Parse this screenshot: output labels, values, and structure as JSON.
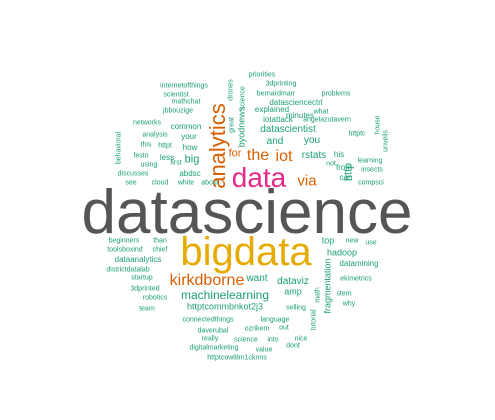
{
  "colors": {
    "teal": "#1b9e77",
    "orange": "#d95f02",
    "gold": "#e6ab02",
    "magenta": "#e7298a",
    "gray": "#555555"
  },
  "words": {
    "datascience": "datascience",
    "bigdata": "bigdata",
    "data": "data",
    "analytics": "analytics",
    "kirkdborne": "kirkdborne",
    "the": "the",
    "iot": "iot",
    "via": "via",
    "machinelearning": "machinelearning",
    "for": "for",
    "big": "big",
    "http": "http",
    "datascientist": "datascientist",
    "and": "and",
    "you": "you",
    "rstats": "rstats",
    "dataviz": "dataviz",
    "want": "want",
    "amp": "amp",
    "top": "top",
    "hadoop": "hadoop",
    "byodnews": "byodnews",
    "fragmentation": "fragmentation",
    "httptcommbnkot2j3": "httptcommbnkot2j3",
    "common": "common",
    "how": "how",
    "your": "your",
    "iotattack": "iotattack",
    "explained": "explained",
    "abdsc": "abdsc",
    "less": "less",
    "minutes": "minutes",
    "his": "his",
    "from": "from",
    "can": "can",
    "dataanalytics": "dataanalytics",
    "datamining": "datamining",
    "datasciencectrl": "datasciencectrl",
    "internetofthings": "internetofthings",
    "scientist": "scientist",
    "mathchat": "mathchat",
    "jbbouzige": "jbbouzige",
    "networks": "networks",
    "analysis": "analysis",
    "httpt": "httpt",
    "using": "using",
    "festo": "festo",
    "this": "this",
    "first": "first",
    "discusses": "discusses",
    "see": "see",
    "cloud": "cloud",
    "white": "white",
    "about": "about",
    "behavioral": "behavioral",
    "drones": "drones",
    "great": "great",
    "science": "science",
    "priorities": "priorities",
    "3dprinting": "3dprinting",
    "bernardmarr": "bernardmarr",
    "problems": "problems",
    "what": "what",
    "angelazutavern": "angelazutavern",
    "httptc": "httptc",
    "house": "house",
    "unveils": "unveils",
    "not": "not",
    "learning": "learning",
    "insects": "insects",
    "compsci": "compsci",
    "beginners": "beginners",
    "than": "than",
    "toolsboxind": "toolsboxind",
    "chief": "chief",
    "new": "new",
    "use": "use",
    "districtdatalab": "districtdatalab",
    "startup": "startup",
    "3dprinted": "3dprinted",
    "robotics": "robotics",
    "team": "team",
    "ekimetrics": "ekimetrics",
    "math": "math",
    "tutorial": "tutorial",
    "stem": "stem",
    "why": "why",
    "connectedthings": "connectedthings",
    "language": "language",
    "selling": "selling",
    "daverubal": "daverubal",
    "ozrikem": "ozrikem",
    "out": "out",
    "really": "really",
    "science2": "science",
    "into": "into",
    "nice": "nice",
    "digitalmarketing": "digitalmarketing",
    "value": "value",
    "dont": "dont",
    "httptcowl8m1cknns": "httptcowl8m1cknns"
  }
}
